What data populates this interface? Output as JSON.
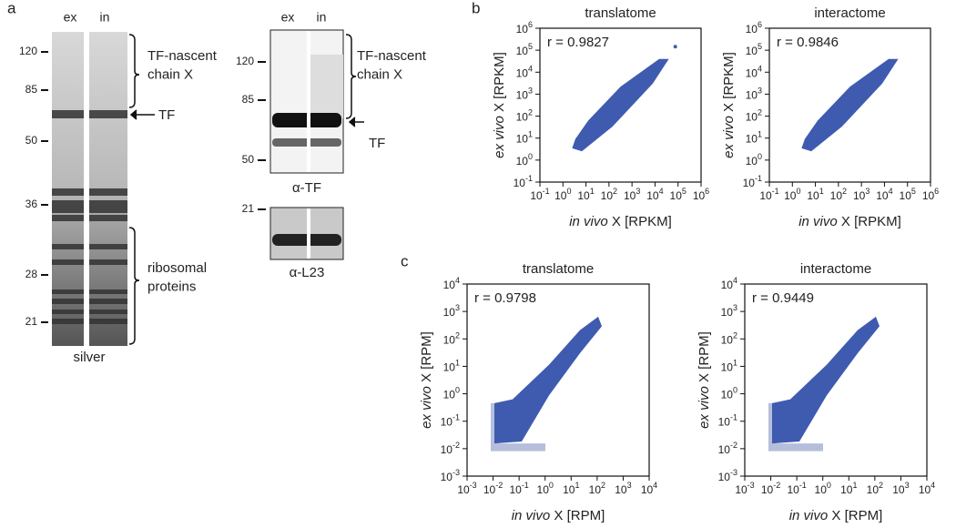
{
  "panel_labels": [
    "a",
    "b",
    "c"
  ],
  "gel": {
    "lanes": [
      "ex",
      "in"
    ],
    "markers": [
      "120",
      "85",
      "50",
      "36",
      "28",
      "21"
    ],
    "bracket_top": "TF-nascent\nchain X",
    "arrow_label": "TF",
    "bracket_bottom": "ribosomal\nproteins",
    "caption": "silver"
  },
  "blot": {
    "lanes": [
      "ex",
      "in"
    ],
    "markers": [
      "120",
      "85",
      "50"
    ],
    "bracket_top": "TF-nascent\nchain X",
    "arrow_label": "TF",
    "caption": "α-TF",
    "l23_marker": "21",
    "l23_caption": "α-L23"
  },
  "chart_data": [
    {
      "type": "scatter",
      "title": "translatome",
      "annotation": "r = 0.9827",
      "xlabel_italic": "in vivo",
      "xlabel": " X [RPKM]",
      "ylabel_italic": "ex vivo",
      "ylabel": " X [RPKM]",
      "log": true,
      "color": "#3f5bb0",
      "xlim": [
        0.1,
        1000000
      ],
      "ylim": [
        0.1,
        1000000
      ],
      "xticks": [
        {
          "value": 0.1,
          "label": "10",
          "sup": "-1"
        },
        {
          "value": 1,
          "label": "10",
          "sup": "0"
        },
        {
          "value": 10,
          "label": "10",
          "sup": "1"
        },
        {
          "value": 100,
          "label": "10",
          "sup": "2"
        },
        {
          "value": 1000,
          "label": "10",
          "sup": "3"
        },
        {
          "value": 10000,
          "label": "10",
          "sup": "4"
        },
        {
          "value": 100000,
          "label": "10",
          "sup": "5"
        },
        {
          "value": 1000000,
          "label": "10",
          "sup": "6"
        }
      ],
      "yticks": [
        {
          "value": 0.1,
          "label": "10",
          "sup": "-1"
        },
        {
          "value": 1,
          "label": "10",
          "sup": "0"
        },
        {
          "value": 10,
          "label": "10",
          "sup": "1"
        },
        {
          "value": 100,
          "label": "10",
          "sup": "2"
        },
        {
          "value": 1000,
          "label": "10",
          "sup": "3"
        },
        {
          "value": 10000,
          "label": "10",
          "sup": "4"
        },
        {
          "value": 100000,
          "label": "10",
          "sup": "5"
        },
        {
          "value": 1000000,
          "label": "10",
          "sup": "6"
        }
      ]
    },
    {
      "type": "scatter",
      "title": "interactome",
      "annotation": "r = 0.9846",
      "xlabel_italic": "in vivo",
      "xlabel": " X [RPKM]",
      "ylabel_italic": "ex vivo",
      "ylabel": " X [RPKM]",
      "log": true,
      "color": "#3f5bb0",
      "xlim": [
        0.1,
        1000000
      ],
      "ylim": [
        0.1,
        1000000
      ],
      "xticks": [
        {
          "value": 0.1,
          "label": "10",
          "sup": "-1"
        },
        {
          "value": 1,
          "label": "10",
          "sup": "0"
        },
        {
          "value": 10,
          "label": "10",
          "sup": "1"
        },
        {
          "value": 100,
          "label": "10",
          "sup": "2"
        },
        {
          "value": 1000,
          "label": "10",
          "sup": "3"
        },
        {
          "value": 10000,
          "label": "10",
          "sup": "4"
        },
        {
          "value": 100000,
          "label": "10",
          "sup": "5"
        },
        {
          "value": 1000000,
          "label": "10",
          "sup": "6"
        }
      ],
      "yticks": [
        {
          "value": 0.1,
          "label": "10",
          "sup": "-1"
        },
        {
          "value": 1,
          "label": "10",
          "sup": "0"
        },
        {
          "value": 10,
          "label": "10",
          "sup": "1"
        },
        {
          "value": 100,
          "label": "10",
          "sup": "2"
        },
        {
          "value": 1000,
          "label": "10",
          "sup": "3"
        },
        {
          "value": 10000,
          "label": "10",
          "sup": "4"
        },
        {
          "value": 100000,
          "label": "10",
          "sup": "5"
        },
        {
          "value": 1000000,
          "label": "10",
          "sup": "6"
        }
      ]
    },
    {
      "type": "scatter",
      "title": "translatome",
      "annotation": "r = 0.9798",
      "xlabel_italic": "in vivo",
      "xlabel": " X [RPM]",
      "ylabel_italic": "ex vivo",
      "ylabel": " X [RPM]",
      "log": true,
      "color": "#3f5bb0",
      "xlim": [
        0.001,
        10000
      ],
      "ylim": [
        0.001,
        10000
      ],
      "xticks": [
        {
          "value": 0.001,
          "label": "10",
          "sup": "-3"
        },
        {
          "value": 0.01,
          "label": "10",
          "sup": "-2"
        },
        {
          "value": 0.1,
          "label": "10",
          "sup": "-1"
        },
        {
          "value": 1,
          "label": "10",
          "sup": "0"
        },
        {
          "value": 10,
          "label": "10",
          "sup": "1"
        },
        {
          "value": 100,
          "label": "10",
          "sup": "2"
        },
        {
          "value": 1000,
          "label": "10",
          "sup": "3"
        },
        {
          "value": 10000,
          "label": "10",
          "sup": "4"
        }
      ],
      "yticks": [
        {
          "value": 0.001,
          "label": "10",
          "sup": "-3"
        },
        {
          "value": 0.01,
          "label": "10",
          "sup": "-2"
        },
        {
          "value": 0.1,
          "label": "10",
          "sup": "-1"
        },
        {
          "value": 1,
          "label": "10",
          "sup": "0"
        },
        {
          "value": 10,
          "label": "10",
          "sup": "1"
        },
        {
          "value": 100,
          "label": "10",
          "sup": "2"
        },
        {
          "value": 1000,
          "label": "10",
          "sup": "3"
        },
        {
          "value": 10000,
          "label": "10",
          "sup": "4"
        }
      ]
    },
    {
      "type": "scatter",
      "title": "interactome",
      "annotation": "r = 0.9449",
      "xlabel_italic": "in vivo",
      "xlabel": " X [RPM]",
      "ylabel_italic": "ex vivo",
      "ylabel": " X [RPM]",
      "log": true,
      "color": "#3f5bb0",
      "xlim": [
        0.001,
        10000
      ],
      "ylim": [
        0.001,
        10000
      ],
      "xticks": [
        {
          "value": 0.001,
          "label": "10",
          "sup": "-3"
        },
        {
          "value": 0.01,
          "label": "10",
          "sup": "-2"
        },
        {
          "value": 0.1,
          "label": "10",
          "sup": "-1"
        },
        {
          "value": 1,
          "label": "10",
          "sup": "0"
        },
        {
          "value": 10,
          "label": "10",
          "sup": "1"
        },
        {
          "value": 100,
          "label": "10",
          "sup": "2"
        },
        {
          "value": 1000,
          "label": "10",
          "sup": "3"
        },
        {
          "value": 10000,
          "label": "10",
          "sup": "4"
        }
      ],
      "yticks": [
        {
          "value": 0.001,
          "label": "10",
          "sup": "-3"
        },
        {
          "value": 0.01,
          "label": "10",
          "sup": "-2"
        },
        {
          "value": 0.1,
          "label": "10",
          "sup": "-1"
        },
        {
          "value": 1,
          "label": "10",
          "sup": "0"
        },
        {
          "value": 10,
          "label": "10",
          "sup": "1"
        },
        {
          "value": 100,
          "label": "10",
          "sup": "2"
        },
        {
          "value": 1000,
          "label": "10",
          "sup": "3"
        },
        {
          "value": 10000,
          "label": "10",
          "sup": "4"
        }
      ]
    }
  ]
}
